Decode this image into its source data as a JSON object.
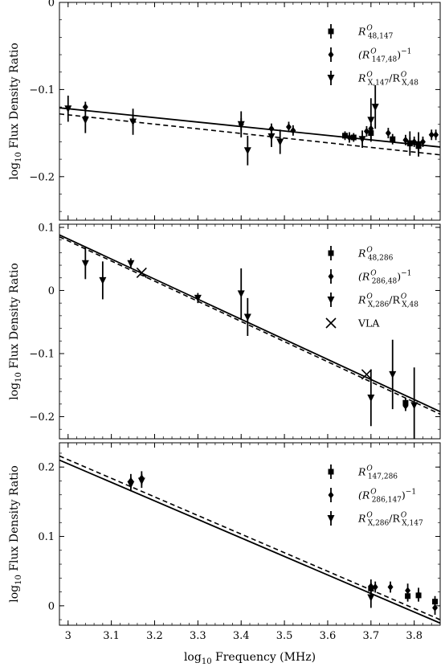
{
  "chart_data": [
    {
      "type": "scatter",
      "xlabel": "",
      "ylabel": "log10 Flux Density Ratio",
      "ylabel_main": "log",
      "ylabel_sub": "10",
      "ylabel_rest": " Flux Density Ratio",
      "xlim": [
        2.98,
        3.86
      ],
      "ylim": [
        -0.25,
        0.0
      ],
      "yticks": [
        0,
        -0.1,
        -0.2
      ],
      "ytick_labels": [
        "0",
        "−0.1",
        "−0.2"
      ],
      "legend_position": "top-right",
      "series": [
        {
          "name": "R^O_{48,147}",
          "label": {
            "main": "R",
            "sup": "O",
            "sub": "48,147",
            "tail": ""
          },
          "marker": "square",
          "x": [
            3.64,
            3.66,
            3.7,
            3.75,
            3.79,
            3.81
          ],
          "y": [
            -0.153,
            -0.155,
            -0.15,
            -0.157,
            -0.162,
            -0.165
          ],
          "err": [
            0.005,
            0.005,
            0.008,
            0.006,
            0.007,
            0.008
          ]
        },
        {
          "name": "(R^O_{147,48})^-1",
          "label": {
            "main": "(R",
            "sup": "O",
            "sub": "147,48",
            "tail": ")",
            "tail_sup": "−1"
          },
          "marker": "diamond",
          "x": [
            3.04,
            3.15,
            3.4,
            3.47,
            3.51,
            3.52,
            3.65,
            3.69,
            3.7,
            3.74,
            3.78,
            3.8,
            3.82,
            3.84,
            3.85
          ],
          "y": [
            -0.12,
            -0.136,
            -0.14,
            -0.145,
            -0.143,
            -0.147,
            -0.155,
            -0.148,
            -0.145,
            -0.15,
            -0.158,
            -0.16,
            -0.16,
            -0.152,
            -0.152
          ],
          "err": [
            0.006,
            0.006,
            0.007,
            0.006,
            0.006,
            0.006,
            0.006,
            0.006,
            0.006,
            0.006,
            0.006,
            0.006,
            0.006,
            0.006,
            0.006
          ]
        },
        {
          "name": "R^O_{X,147}/R^O_{X,48}",
          "label": {
            "main": "R",
            "sup": "O",
            "sub": "X,147",
            "tail": "/R",
            "tail_sup2": "O",
            "tail_sub2": "X,48"
          },
          "marker": "triangle-down",
          "x": [
            3.0,
            3.04,
            3.15,
            3.4,
            3.415,
            3.47,
            3.49,
            3.68,
            3.7,
            3.71,
            3.79,
            3.81
          ],
          "y": [
            -0.122,
            -0.135,
            -0.137,
            -0.14,
            -0.17,
            -0.154,
            -0.16,
            -0.157,
            -0.135,
            -0.12,
            -0.162,
            -0.163
          ],
          "err": [
            0.015,
            0.015,
            0.015,
            0.015,
            0.017,
            0.012,
            0.014,
            0.01,
            0.025,
            0.025,
            0.014,
            0.014
          ]
        }
      ],
      "fits": [
        {
          "style": "solid",
          "x": [
            2.98,
            3.86
          ],
          "y": [
            -0.121,
            -0.166
          ]
        },
        {
          "style": "dashed",
          "x": [
            2.98,
            3.86
          ],
          "y": [
            -0.128,
            -0.175
          ]
        }
      ]
    },
    {
      "type": "scatter",
      "xlabel": "",
      "ylabel": "log10 Flux Density Ratio",
      "ylabel_main": "log",
      "ylabel_sub": "10",
      "ylabel_rest": " Flux Density Ratio",
      "xlim": [
        2.98,
        3.86
      ],
      "ylim": [
        -0.235,
        0.105
      ],
      "yticks": [
        0.1,
        0,
        -0.1,
        -0.2
      ],
      "ytick_labels": [
        "0.1",
        "0",
        "−0.1",
        "−0.2"
      ],
      "legend_position": "top-right",
      "series": [
        {
          "name": "R^O_{48,286}",
          "label": {
            "main": "R",
            "sup": "O",
            "sub": "48,286",
            "tail": ""
          },
          "marker": "square",
          "x": [
            3.78
          ],
          "y": [
            -0.178
          ],
          "err": [
            0.008
          ]
        },
        {
          "name": "(R^O_{286,48})^-1",
          "label": {
            "main": "(R",
            "sup": "O",
            "sub": "286,48",
            "tail": ")",
            "tail_sup": "−1"
          },
          "marker": "diamond",
          "x": [
            3.78
          ],
          "y": [
            -0.183
          ],
          "err": [
            0.008
          ]
        },
        {
          "name": "R^O_{X,286}/R^O_{X,48}",
          "label": {
            "main": "R",
            "sup": "O",
            "sub": "X,286",
            "tail": "/R",
            "tail_sup2": "O",
            "tail_sub2": "X,48"
          },
          "marker": "triangle-down",
          "x": [
            3.04,
            3.08,
            3.145,
            3.3,
            3.4,
            3.415,
            3.7,
            3.75,
            3.8
          ],
          "y": [
            0.043,
            0.016,
            0.043,
            -0.012,
            -0.005,
            -0.042,
            -0.17,
            -0.133,
            -0.182
          ],
          "err": [
            0.025,
            0.03,
            0.008,
            0.008,
            0.04,
            0.03,
            0.045,
            0.055,
            0.06
          ]
        },
        {
          "name": "VLA",
          "label": {
            "main": "VLA",
            "sup": "",
            "sub": "",
            "tail": ""
          },
          "marker": "x",
          "x": [
            3.17,
            3.69
          ],
          "y": [
            0.028,
            -0.133
          ],
          "err": [
            0,
            0
          ]
        }
      ],
      "fits": [
        {
          "style": "solid",
          "x": [
            2.98,
            3.86
          ],
          "y": [
            0.088,
            -0.192
          ]
        },
        {
          "style": "dashed",
          "x": [
            2.98,
            3.86
          ],
          "y": [
            0.085,
            -0.196
          ]
        }
      ]
    },
    {
      "type": "scatter",
      "xlabel": "log10 Frequency (MHz)",
      "xlabel_main": "log",
      "xlabel_sub": "10",
      "xlabel_rest": " Frequency (MHz)",
      "ylabel": "log10 Flux Density Ratio",
      "ylabel_main": "log",
      "ylabel_sub": "10",
      "ylabel_rest": " Flux Density Ratio",
      "xlim": [
        2.98,
        3.86
      ],
      "ylim": [
        -0.028,
        0.235
      ],
      "yticks": [
        0.2,
        0.1,
        0
      ],
      "ytick_labels": [
        "0.2",
        "0.1",
        "0"
      ],
      "xticks": [
        3.0,
        3.1,
        3.2,
        3.3,
        3.4,
        3.5,
        3.6,
        3.7,
        3.8
      ],
      "xtick_labels": [
        "3",
        "3.1",
        "3.2",
        "3.3",
        "3.4",
        "3.5",
        "3.6",
        "3.7",
        "3.8"
      ],
      "legend_position": "top-right",
      "series": [
        {
          "name": "R^O_{147,286}",
          "label": {
            "main": "R",
            "sup": "O",
            "sub": "147,286",
            "tail": ""
          },
          "marker": "square",
          "x": [
            3.7,
            3.785,
            3.81,
            3.848
          ],
          "y": [
            0.025,
            0.014,
            0.015,
            0.006
          ],
          "err": [
            0.008,
            0.008,
            0.008,
            0.008
          ]
        },
        {
          "name": "(R^O_{286,147})^-1",
          "label": {
            "main": "(R",
            "sup": "O",
            "sub": "286,147",
            "tail": ")",
            "tail_sup": "−1"
          },
          "marker": "diamond",
          "x": [
            3.145,
            3.17,
            3.7,
            3.71,
            3.745,
            3.785,
            3.81,
            3.848
          ],
          "y": [
            0.18,
            0.184,
            0.028,
            0.027,
            0.027,
            0.022,
            0.016,
            -0.003
          ],
          "err": [
            0.01,
            0.01,
            0.01,
            0.008,
            0.008,
            0.01,
            0.01,
            0.01
          ]
        },
        {
          "name": "R^O_{X,286}/R^O_{X,147}",
          "label": {
            "main": "R",
            "sup": "O",
            "sub": "X,286",
            "tail": "/R",
            "tail_sup2": "O",
            "tail_sub2": "X,147"
          },
          "marker": "triangle-down",
          "x": [
            3.145,
            3.17,
            3.7
          ],
          "y": [
            0.175,
            0.18,
            0.012
          ],
          "err": [
            0.01,
            0.01,
            0.015
          ]
        }
      ],
      "fits": [
        {
          "style": "solid",
          "x": [
            2.98,
            3.86
          ],
          "y": [
            0.21,
            -0.025
          ]
        },
        {
          "style": "dashed",
          "x": [
            2.98,
            3.86
          ],
          "y": [
            0.216,
            -0.02
          ]
        }
      ]
    }
  ]
}
